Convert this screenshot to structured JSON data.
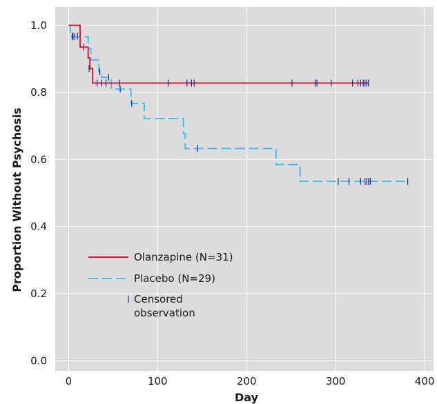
{
  "chart_data": {
    "type": "line",
    "step": true,
    "title": "",
    "xlabel": "Day",
    "ylabel": "Proportion Without Psychosis",
    "xlim": [
      -15,
      410
    ],
    "ylim": [
      -0.03,
      1.055
    ],
    "xticks": [
      0,
      100,
      200,
      300,
      400
    ],
    "yticks": [
      0.0,
      0.2,
      0.4,
      0.6,
      0.8,
      1.0
    ],
    "xtick_labels": [
      "0",
      "100",
      "200",
      "300",
      "400"
    ],
    "ytick_labels": [
      "0.0",
      "0.2",
      "0.4",
      "0.6",
      "0.8",
      "1.0"
    ],
    "grid": true,
    "background": "#dcdcdc",
    "legend_position": "bottom-left",
    "series": [
      {
        "name": "Olanzapine (N=31)",
        "color": "#e0143c",
        "dash": "solid",
        "steps": [
          [
            0,
            1.0
          ],
          [
            13,
            0.935
          ],
          [
            20,
            0.935
          ],
          [
            22,
            0.903
          ],
          [
            24,
            0.871
          ],
          [
            27,
            0.828
          ],
          [
            337,
            0.828
          ]
        ],
        "censored": [
          [
            5,
            0.968
          ],
          [
            10,
            0.968
          ],
          [
            17,
            0.935
          ],
          [
            23,
            0.871
          ],
          [
            32,
            0.828
          ],
          [
            37,
            0.828
          ],
          [
            42,
            0.828
          ],
          [
            57,
            0.828
          ],
          [
            112,
            0.828
          ],
          [
            133,
            0.828
          ],
          [
            138,
            0.828
          ],
          [
            141,
            0.828
          ],
          [
            251,
            0.828
          ],
          [
            277,
            0.828
          ],
          [
            279,
            0.828
          ],
          [
            295,
            0.828
          ],
          [
            319,
            0.828
          ],
          [
            325,
            0.828
          ],
          [
            328,
            0.828
          ],
          [
            331,
            0.828
          ],
          [
            333,
            0.828
          ],
          [
            335,
            0.828
          ],
          [
            337,
            0.828
          ]
        ]
      },
      {
        "name": "Placebo (N=29)",
        "color": "#3cc0ee",
        "dash": "dashed",
        "steps": [
          [
            0,
            1.0
          ],
          [
            2,
            0.966
          ],
          [
            8,
            0.966
          ],
          [
            18,
            0.966
          ],
          [
            22,
            0.931
          ],
          [
            25,
            0.897
          ],
          [
            34,
            0.862
          ],
          [
            37,
            0.845
          ],
          [
            47,
            0.845
          ],
          [
            48,
            0.81
          ],
          [
            70,
            0.81
          ],
          [
            70,
            0.767
          ],
          [
            85,
            0.767
          ],
          [
            85,
            0.722
          ],
          [
            129,
            0.722
          ],
          [
            129,
            0.678
          ],
          [
            131,
            0.678
          ],
          [
            131,
            0.633
          ],
          [
            233,
            0.633
          ],
          [
            233,
            0.585
          ],
          [
            260,
            0.585
          ],
          [
            260,
            0.535
          ],
          [
            381,
            0.535
          ]
        ],
        "censored": [
          [
            4,
            0.966
          ],
          [
            7,
            0.966
          ],
          [
            35,
            0.862
          ],
          [
            45,
            0.845
          ],
          [
            58,
            0.81
          ],
          [
            71,
            0.767
          ],
          [
            145,
            0.633
          ],
          [
            303,
            0.535
          ],
          [
            315,
            0.535
          ],
          [
            328,
            0.535
          ],
          [
            333,
            0.535
          ],
          [
            335,
            0.535
          ],
          [
            337,
            0.535
          ],
          [
            339,
            0.535
          ],
          [
            381,
            0.535
          ]
        ]
      }
    ],
    "legend": {
      "censored_label_line1": "Censored",
      "censored_label_line2": "observation",
      "censored_color": "#1a2a8c"
    }
  }
}
